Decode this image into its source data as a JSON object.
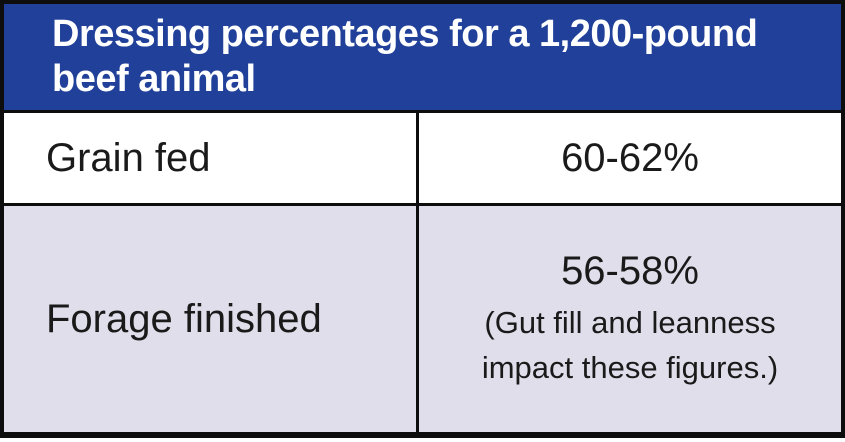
{
  "header": {
    "title": "Dressing percentages for a 1,200-pound beef animal"
  },
  "rows": [
    {
      "label": "Grain fed",
      "value": "60-62%",
      "note": ""
    },
    {
      "label": "Forage finished",
      "value": "56-58%",
      "note": "(Gut fill and leanness impact these figures.)"
    }
  ],
  "colors": {
    "header_bg": "#21409A",
    "header_text": "#FFFFFF",
    "row_white_bg": "#FFFFFF",
    "row_lavender_bg": "#DFDEEA",
    "border": "#0D0D0D",
    "body_text": "#1A1A1A"
  },
  "chart_data": {
    "type": "table",
    "title": "Dressing percentages for a 1,200-pound beef animal",
    "columns": 2,
    "rows": [
      [
        "Grain fed",
        "60-62%"
      ],
      [
        "Forage finished",
        "56-58% (Gut fill and leanness impact these figures.)"
      ]
    ],
    "values": [
      {
        "category": "Grain fed",
        "dressing_pct_min": 60,
        "dressing_pct_max": 62
      },
      {
        "category": "Forage finished",
        "dressing_pct_min": 56,
        "dressing_pct_max": 58,
        "note": "Gut fill and leanness impact these figures."
      }
    ],
    "legend_position": "none",
    "grid": false
  }
}
